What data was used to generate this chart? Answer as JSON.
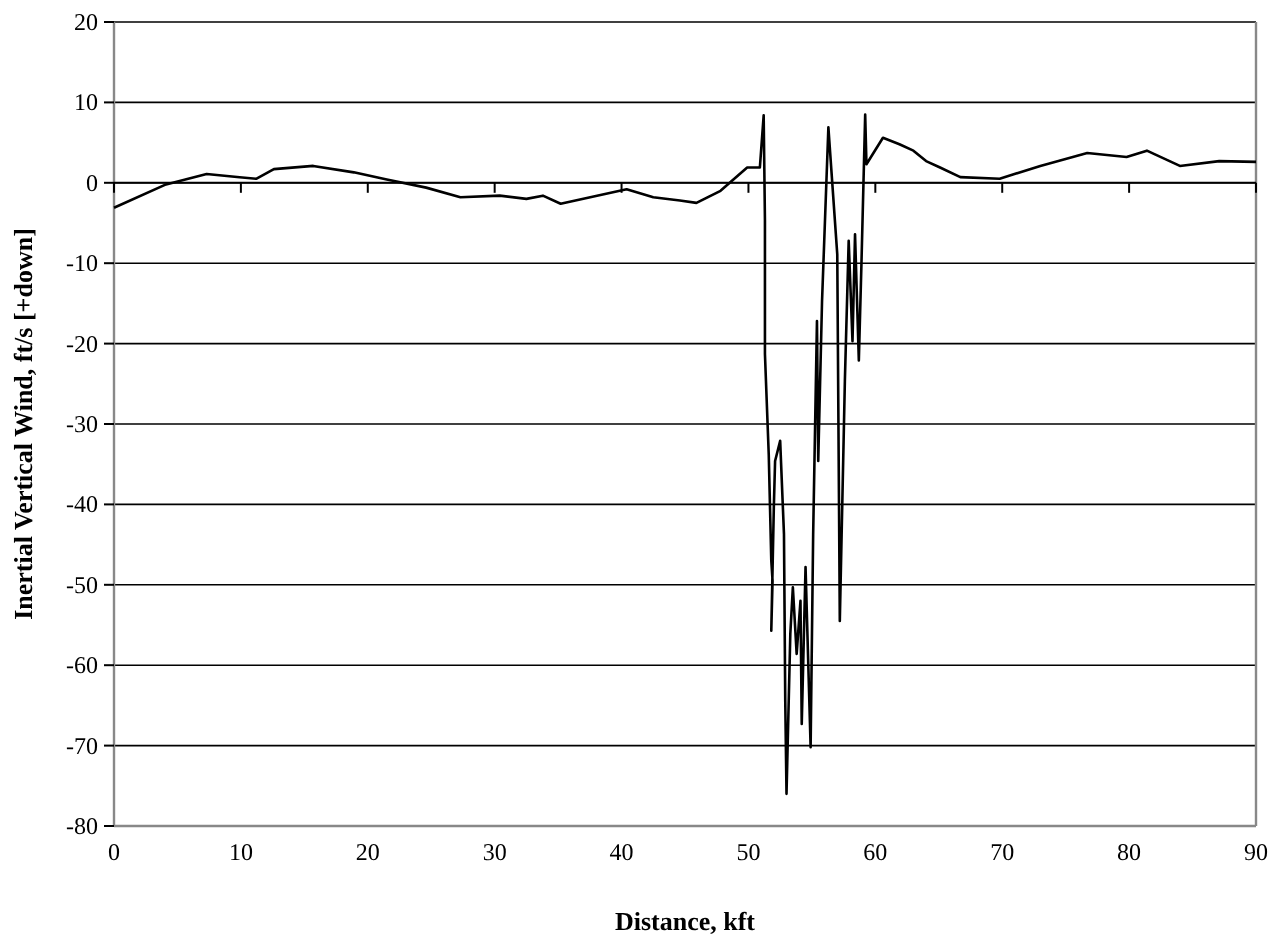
{
  "chart_data": {
    "type": "line",
    "xlabel": "Distance, kft",
    "ylabel": "Inertial Vertical Wind, ft/s [+down]",
    "xlim": [
      0,
      90
    ],
    "xticks": [
      0,
      10,
      20,
      30,
      40,
      50,
      60,
      70,
      80,
      90
    ],
    "ylim": [
      -80,
      20
    ],
    "yticks": [
      -80,
      -70,
      -60,
      -50,
      -40,
      -30,
      -20,
      -10,
      0,
      10,
      20
    ],
    "grid": "y",
    "marker": "none",
    "line_style": "solid",
    "series": [
      {
        "color": "#000000",
        "x": [
          0,
          4.1,
          7.3,
          9.9,
          11.2,
          12.6,
          15.7,
          18.9,
          21.5,
          24.6,
          27.3,
          30.4,
          32.5,
          33.8,
          35.2,
          37.8,
          40.4,
          42.5,
          44.6,
          45.9,
          47.8,
          49.9,
          50.9,
          51.2,
          51.3,
          51.3,
          51.6,
          51.8,
          51.9,
          51.8,
          52.0,
          52.1,
          52.5,
          52.8,
          52.9,
          53.0,
          53.3,
          53.5,
          53.8,
          54.1,
          54.2,
          54.5,
          54.9,
          55.1,
          55.4,
          55.5,
          55.8,
          56.3,
          57.0,
          57.2,
          57.6,
          57.9,
          58.2,
          58.4,
          58.7,
          58.9,
          59.2,
          59.3,
          60.6,
          61.9,
          63.0,
          64.0,
          65.1,
          66.7,
          69.8,
          73.0,
          76.7,
          79.8,
          81.4,
          84.0,
          87.1,
          90
        ],
        "values": [
          -3.1,
          -0.2,
          1.1,
          0.7,
          0.5,
          1.7,
          2.1,
          1.3,
          0.4,
          -0.6,
          -1.8,
          -1.6,
          -2.0,
          -1.6,
          -2.6,
          -1.7,
          -0.8,
          -1.8,
          -2.2,
          -2.5,
          -1.0,
          1.9,
          1.9,
          8.4,
          -4.7,
          -21.3,
          -33.8,
          -47,
          -49.5,
          -55.7,
          -40.4,
          -34.6,
          -32.1,
          -43.7,
          -64.4,
          -76,
          -56.1,
          -50.3,
          -58.6,
          -52,
          -67.3,
          -47.8,
          -70.2,
          -43.7,
          -17.2,
          -34.6,
          -14.7,
          6.9,
          -8.9,
          -54.5,
          -24.6,
          -7.2,
          -19.7,
          -6.4,
          -22.1,
          -10.4,
          8.5,
          2.3,
          5.6,
          4.8,
          4.0,
          2.7,
          1.9,
          0.7,
          0.5,
          2.1,
          3.7,
          3.2,
          4.0,
          2.1,
          2.7,
          2.6
        ]
      }
    ]
  }
}
